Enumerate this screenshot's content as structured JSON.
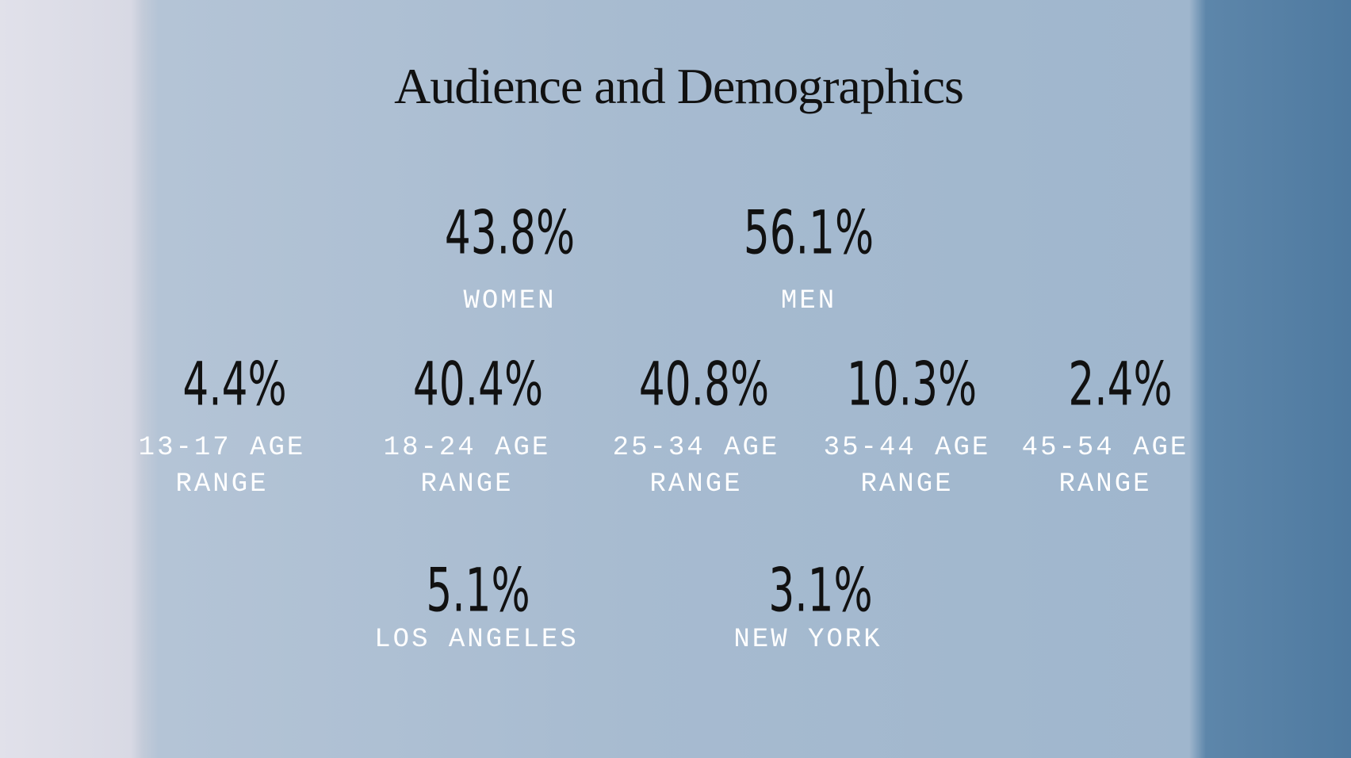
{
  "title": "Audience and Demographics",
  "gender": [
    {
      "value": "43.8%",
      "label": "WOMEN"
    },
    {
      "value": "56.1%",
      "label": "MEN"
    }
  ],
  "age": [
    {
      "value": "4.4%",
      "label": "13-17 AGE RANGE"
    },
    {
      "value": "40.4%",
      "label": "18-24 AGE RANGE"
    },
    {
      "value": "40.8%",
      "label": "25-34 AGE RANGE"
    },
    {
      "value": "10.3%",
      "label": "35-44 AGE RANGE"
    },
    {
      "value": "2.4%",
      "label": "45-54 AGE RANGE"
    }
  ],
  "cities": [
    {
      "value": "5.1%",
      "label": "LOS ANGELES"
    },
    {
      "value": "3.1%",
      "label": "NEW YORK"
    }
  ]
}
